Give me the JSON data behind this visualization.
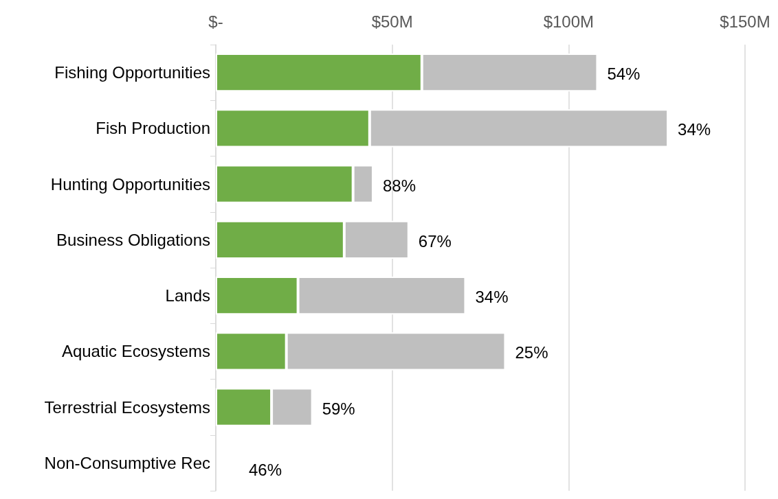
{
  "chart_data": {
    "type": "bar",
    "orientation": "horizontal",
    "stacked": true,
    "categories": [
      "Fishing Opportunities",
      "Fish Production",
      "Hunting Opportunities",
      "Business Obligations",
      "Lands",
      "Aquatic Ecosystems",
      "Terrestrial Ecosystems",
      "Non-Consumptive Rec"
    ],
    "series": [
      {
        "color": "#70ad47",
        "values": [
          58.4,
          43.6,
          38.9,
          36.4,
          23.3,
          20.0,
          15.8,
          null
        ]
      },
      {
        "color": "#bfbfbf",
        "values": [
          49.8,
          84.6,
          5.7,
          18.3,
          47.5,
          62.1,
          11.6,
          null
        ]
      }
    ],
    "xlim": [
      0,
      150
    ],
    "xticks": [
      {
        "value": 0,
        "label": "$-"
      },
      {
        "value": 50,
        "label": "$50M"
      },
      {
        "value": 100,
        "label": "$100M"
      },
      {
        "value": 150,
        "label": "$150M"
      }
    ],
    "grid": "x",
    "annotations": [
      {
        "text": "54%",
        "x": 108.2,
        "y": "Fishing Opportunities"
      },
      {
        "text": "34%",
        "x": 128.2,
        "y": "Fish Production"
      },
      {
        "text": "88%",
        "x": 44.6,
        "y": "Hunting Opportunities"
      },
      {
        "text": "67%",
        "x": 54.7,
        "y": "Business Obligations"
      },
      {
        "text": "34%",
        "x": 70.8,
        "y": "Lands"
      },
      {
        "text": "25%",
        "x": 82.1,
        "y": "Aquatic Ecosystems"
      },
      {
        "text": "59%",
        "x": 27.4,
        "y": "Terrestrial Ecosystems"
      },
      "46%"
    ]
  }
}
